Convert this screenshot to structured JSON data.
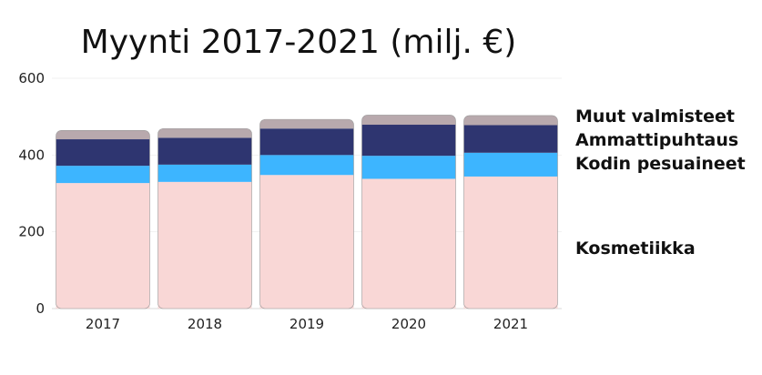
{
  "chart_data": {
    "type": "bar",
    "stacked": true,
    "title": "Myynti 2017-2021 (milj. €)",
    "xlabel": "",
    "ylabel": "",
    "categories": [
      "2017",
      "2018",
      "2019",
      "2020",
      "2021"
    ],
    "ylim": [
      0,
      600
    ],
    "yticks": [
      0,
      200,
      400,
      600
    ],
    "grid": true,
    "legend_position": "right",
    "series": [
      {
        "name": "Kosmetiikka",
        "color": "#f9d7d6",
        "values": [
          327,
          330,
          348,
          338,
          344
        ]
      },
      {
        "name": "Kodin pesuaineet",
        "color": "#3db5ff",
        "values": [
          45,
          45,
          52,
          60,
          62
        ]
      },
      {
        "name": "Ammattipuhtaus",
        "color": "#2e3570",
        "values": [
          69,
          70,
          69,
          81,
          72
        ]
      },
      {
        "name": "Muut valmisteet",
        "color": "#b8a9ad",
        "values": [
          23,
          24,
          24,
          25,
          25
        ]
      }
    ]
  }
}
